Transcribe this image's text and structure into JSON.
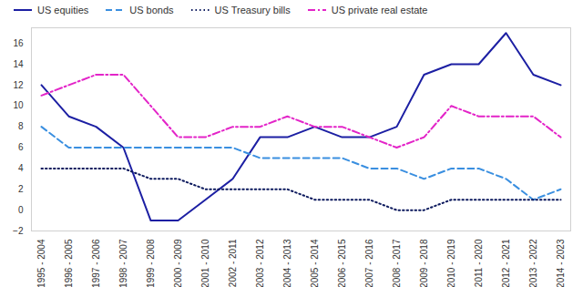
{
  "chart_data": {
    "type": "line",
    "categories": [
      "1995 - 2004",
      "1996 - 2005",
      "1997 - 2006",
      "1998 - 2007",
      "1999 - 2008",
      "2000 - 2009",
      "2001 - 2010",
      "2002 - 2011",
      "2003 - 2012",
      "2004 - 2013",
      "2005 - 2014",
      "2006 - 2015",
      "2007 - 2016",
      "2008 - 2017",
      "2009 - 2018",
      "2010 - 2019",
      "2011 - 2020",
      "2012 - 2021",
      "2013 - 2022",
      "2014 - 2023"
    ],
    "series": [
      {
        "name": "US equities",
        "color": "#1c1fa3",
        "line_style": "solid",
        "values": [
          12,
          9,
          8,
          6,
          -1,
          -1,
          1,
          3,
          7,
          7,
          8,
          7,
          7,
          8,
          13,
          14,
          14,
          17,
          13,
          12
        ]
      },
      {
        "name": "US bonds",
        "color": "#3a8fe0",
        "line_style": "dashed",
        "values": [
          8,
          6,
          6,
          6,
          6,
          6,
          6,
          6,
          5,
          5,
          5,
          5,
          4,
          4,
          3,
          4,
          4,
          3,
          1,
          2
        ]
      },
      {
        "name": "US Treasury bills",
        "color": "#0d1a5e",
        "line_style": "dotted",
        "values": [
          4,
          4,
          4,
          4,
          3,
          3,
          2,
          2,
          2,
          2,
          1,
          1,
          1,
          0,
          0,
          1,
          1,
          1,
          1,
          1
        ]
      },
      {
        "name": "US private real estate",
        "color": "#e324c8",
        "line_style": "dashdot",
        "values": [
          11,
          12,
          13,
          13,
          10,
          7,
          7,
          8,
          8,
          9,
          8,
          8,
          7,
          6,
          7,
          10,
          9,
          9,
          9,
          7
        ]
      }
    ],
    "ylim": [
      -2,
      17.5
    ],
    "yticks": [
      -2,
      0,
      2,
      4,
      6,
      8,
      10,
      12,
      14,
      16
    ],
    "grid": false,
    "legend": "top-left"
  }
}
